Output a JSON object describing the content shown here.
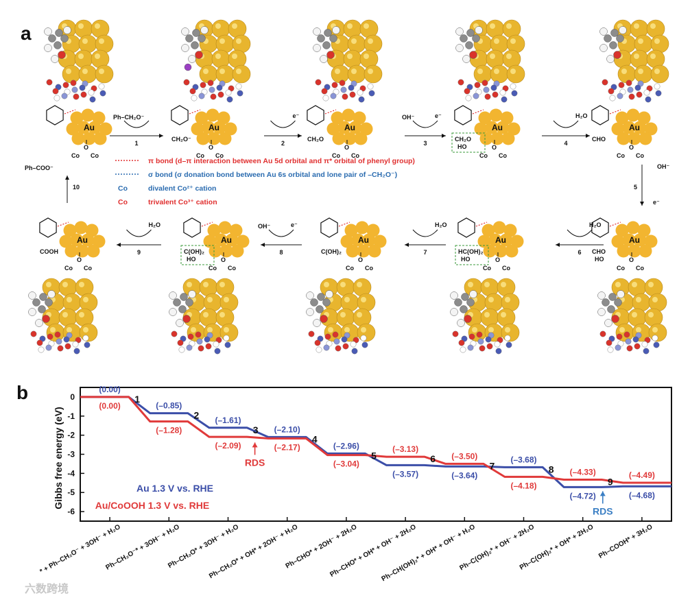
{
  "panel_a": {
    "label": "a",
    "au_label": "Au",
    "co": "Co",
    "top_row": [
      {
        "below": ""
      },
      {
        "below": "CH₂O⁻",
        "pre": "Ph–CH₂O⁻"
      },
      {
        "below": "CH₂O"
      },
      {
        "below": "CH₂O\nHO",
        "box": true
      },
      {
        "below": "CHO"
      }
    ],
    "bottom_row": [
      {
        "below": "COOH"
      },
      {
        "below": "C(OH)₂\nHO",
        "box": true
      },
      {
        "below": "C(OH)₂"
      },
      {
        "below": "HC(OH)₂\nHO",
        "box": true
      },
      {
        "below": "CHO\nHO"
      }
    ],
    "steps": [
      {
        "n": "1",
        "above": "Ph–CH₂O⁻",
        "out": ""
      },
      {
        "n": "2",
        "above": "",
        "out": "e⁻"
      },
      {
        "n": "3",
        "above": "OH⁻",
        "out": "e⁻"
      },
      {
        "n": "4",
        "above": "",
        "out": "H₂O"
      },
      {
        "n": "5",
        "above": "OH⁻",
        "out": "e⁻"
      },
      {
        "n": "6",
        "above": "",
        "out": "H₂O"
      },
      {
        "n": "7",
        "above": "",
        "out": "H₂O"
      },
      {
        "n": "8",
        "above": "OH⁻",
        "out": "e⁻"
      },
      {
        "n": "9",
        "above": "",
        "out": "H₂O"
      },
      {
        "n": "10",
        "above": "",
        "out": "Ph–COO⁻"
      }
    ],
    "legend": [
      {
        "key": "dotted-red",
        "text": "π bond (d–π interaction between Au 5d orbital and π* orbital of phenyl group)",
        "color": "#e03030"
      },
      {
        "key": "dotted-blue",
        "text": "σ bond (σ donation bond between Au 6s orbital and lone pair of –CH₂O⁻)",
        "color": "#2b6cb0"
      },
      {
        "key": "Co",
        "text": "divalent Co²⁺ cation",
        "color": "#2b6cb0"
      },
      {
        "key": "Co",
        "text": "trivalent Co³⁺ cation",
        "color": "#e03030"
      }
    ]
  },
  "chart_data": {
    "type": "line",
    "label": "b",
    "ylabel": "Gibbs free energy (eV)",
    "ylim": [
      -6.5,
      0.5
    ],
    "yticks": [
      "0",
      "-1",
      "-2",
      "-3",
      "-4",
      "-5",
      "-6"
    ],
    "categories": [
      "* + Ph–CH₂O⁻ + 3OH⁻ + H₂O",
      "Ph–CH₂O⁻* + 3OH⁻ + H₂O",
      "Ph–CH₂O* + 3OH⁻ + H₂O",
      "Ph–CH₂O* + OH* + 2OH⁻ + H₂O",
      "Ph–CHO* + 2OH⁻ + 2H₂O",
      "Ph–CHO* + OH* + OH⁻ + 2H₂O",
      "Ph–CH(OH)₂* + OH* + OH⁻ + H₂O",
      "Ph–C(OH)₂* + OH⁻ + 2H₂O",
      "Ph–C(OH)₂* + OH* + 2H₂O",
      "Ph–COOH* + 3H₂O"
    ],
    "step_numbers": [
      "1",
      "2",
      "3",
      "4",
      "5",
      "6",
      "7",
      "8",
      "9"
    ],
    "series": [
      {
        "name": "Au 1.3 V vs. RHE",
        "color": "#3b4ea8",
        "values": [
          0.0,
          -0.85,
          -1.61,
          -2.1,
          -2.96,
          -3.57,
          -3.64,
          -3.68,
          -4.72,
          -4.68
        ],
        "labels": [
          "(0.00)",
          "(–0.85)",
          "(–1.61)",
          "(–2.10)",
          "(–2.96)",
          "(–3.57)",
          "(–3.64)",
          "(–3.68)",
          "(–4.72)",
          "(–4.68)"
        ]
      },
      {
        "name": "Au/CoOOH 1.3 V vs. RHE",
        "color": "#e03a3a",
        "values": [
          0.0,
          -1.28,
          -2.09,
          -2.17,
          -3.04,
          -3.13,
          -3.5,
          -4.18,
          -4.33,
          -4.49
        ],
        "labels": [
          "(0.00)",
          "(–1.28)",
          "(–2.09)",
          "(–2.17)",
          "(–3.04)",
          "(–3.13)",
          "(–3.50)",
          "(–4.18)",
          "(–4.33)",
          "(–4.49)"
        ]
      }
    ],
    "legend": {
      "au": "Au 1.3 V vs. RHE",
      "cooh": "Au/CoOOH 1.3 V vs. RHE"
    },
    "annotations": [
      {
        "text": "RDS",
        "series": "Au/CoOOH",
        "color": "#e03a3a"
      },
      {
        "text": "RDS",
        "series": "Au",
        "color": "#3b7fc4"
      }
    ]
  },
  "watermark": "六数跨境",
  "colors": {
    "gold": "#f2b530",
    "red": "#e03a3a",
    "blue": "#3b4ea8",
    "green": "#3a9a3a"
  }
}
